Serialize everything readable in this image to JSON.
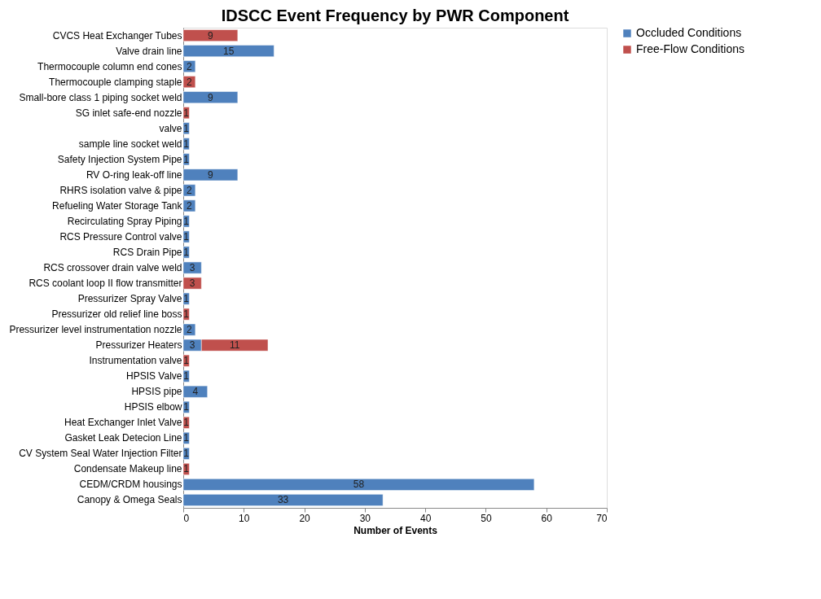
{
  "chart_data": {
    "type": "bar",
    "orientation": "horizontal",
    "stacked": true,
    "title": "IDSCC Event Frequency by PWR Component",
    "xlabel": "Number of Events",
    "categories": [
      "CVCS Heat Exchanger Tubes",
      "Valve drain line",
      "Thermocouple column end cones",
      "Thermocouple clamping staple",
      "Small-bore class 1 piping socket weld",
      "SG inlet safe-end nozzle",
      "valve",
      "sample line socket weld",
      "Safety Injection System Pipe",
      "RV O-ring leak-off line",
      "RHRS isolation valve & pipe",
      "Refueling Water Storage Tank",
      "Recirculating Spray Piping",
      "RCS Pressure Control valve",
      "RCS Drain Pipe",
      "RCS crossover drain valve weld",
      "RCS coolant loop II flow transmitter",
      "Pressurizer Spray Valve",
      "Pressurizer old relief line boss",
      "Pressurizer level instrumentation nozzle",
      "Pressurizer Heaters",
      "Instrumentation valve",
      "HPSIS Valve",
      "HPSIS pipe",
      "HPSIS elbow",
      "Heat Exchanger Inlet Valve",
      "Gasket Leak Detecion Line",
      "CV System Seal Water Injection Filter",
      "Condensate Makeup line",
      "CEDM/CRDM housings",
      "Canopy & Omega Seals"
    ],
    "series": [
      {
        "name": "Occluded Conditions",
        "color": "#4f81bd",
        "values": [
          null,
          15,
          2,
          null,
          9,
          null,
          1,
          1,
          1,
          9,
          2,
          2,
          1,
          1,
          1,
          3,
          null,
          1,
          null,
          2,
          3,
          null,
          1,
          4,
          1,
          null,
          1,
          1,
          null,
          58,
          33
        ]
      },
      {
        "name": "Free-Flow Conditions",
        "color": "#c0504d",
        "values": [
          9,
          null,
          null,
          2,
          null,
          1,
          null,
          null,
          null,
          null,
          null,
          null,
          null,
          null,
          null,
          null,
          3,
          null,
          1,
          null,
          11,
          1,
          null,
          null,
          null,
          1,
          null,
          null,
          1,
          null,
          null
        ]
      }
    ],
    "xlim": [
      0,
      70
    ],
    "xticks": [
      0,
      10,
      20,
      30,
      40,
      50,
      60,
      70
    ],
    "grid": false,
    "legend": "right",
    "data_labels": true
  }
}
